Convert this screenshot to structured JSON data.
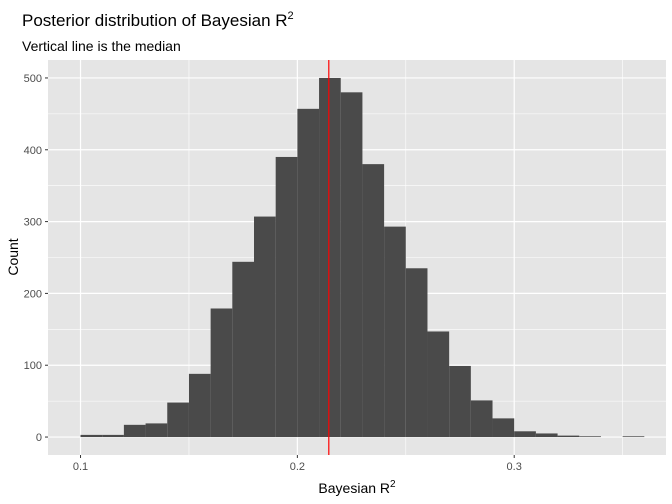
{
  "chart_data": {
    "type": "bar",
    "title": "Posterior distribution of Bayesian R",
    "title_superscript": "2",
    "subtitle": "Vertical line is the median",
    "xlabel": "Bayesian R",
    "xlabel_superscript": "2",
    "ylabel": "Count",
    "xlim": [
      0.085,
      0.37
    ],
    "ylim": [
      -25,
      525
    ],
    "x_ticks": [
      0.1,
      0.2,
      0.3
    ],
    "x_tick_labels": [
      "0.1",
      "0.2",
      "0.3"
    ],
    "y_ticks": [
      0,
      100,
      200,
      300,
      400,
      500
    ],
    "y_tick_labels": [
      "0",
      "100",
      "200",
      "300",
      "400",
      "500"
    ],
    "bin_width": 0.01,
    "bin_centers": [
      0.105,
      0.115,
      0.125,
      0.135,
      0.145,
      0.155,
      0.165,
      0.175,
      0.185,
      0.195,
      0.205,
      0.215,
      0.225,
      0.235,
      0.245,
      0.255,
      0.265,
      0.275,
      0.285,
      0.295,
      0.305,
      0.315,
      0.325,
      0.335,
      0.345,
      0.355
    ],
    "values": [
      3,
      3,
      17,
      19,
      48,
      88,
      179,
      244,
      307,
      390,
      457,
      500,
      480,
      380,
      293,
      235,
      147,
      99,
      51,
      26,
      8,
      5,
      2,
      1,
      0,
      1
    ],
    "median": 0.2145,
    "grid": true,
    "colors": {
      "panel_background": "#e5e5e5",
      "grid": "#ffffff",
      "bar_fill": "#4a4a4a",
      "median_line": "#ff0000"
    }
  }
}
